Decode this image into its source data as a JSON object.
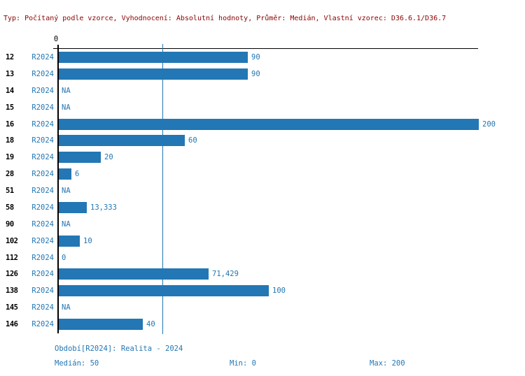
{
  "title": {
    "text": "Typ: Počítaný podle vzorce, Vyhodnocení: Absolutní hodnoty, Průměr: Medián, Vlastní vzorec: D36.6.1/D36.7"
  },
  "chart_data": {
    "type": "bar",
    "orientation": "horizontal",
    "axis_zero_label": "0",
    "xlim": [
      0,
      200
    ],
    "median_line_value": 50,
    "series_label": "R2024",
    "rows": [
      {
        "id": "12",
        "period": "R2024",
        "value": 90,
        "label": "90"
      },
      {
        "id": "13",
        "period": "R2024",
        "value": 90,
        "label": "90"
      },
      {
        "id": "14",
        "period": "R2024",
        "value": null,
        "label": "NA"
      },
      {
        "id": "15",
        "period": "R2024",
        "value": null,
        "label": "NA"
      },
      {
        "id": "16",
        "period": "R2024",
        "value": 200,
        "label": "200"
      },
      {
        "id": "18",
        "period": "R2024",
        "value": 60,
        "label": "60"
      },
      {
        "id": "19",
        "period": "R2024",
        "value": 20,
        "label": "20"
      },
      {
        "id": "28",
        "period": "R2024",
        "value": 6,
        "label": "6"
      },
      {
        "id": "51",
        "period": "R2024",
        "value": null,
        "label": "NA"
      },
      {
        "id": "58",
        "period": "R2024",
        "value": 13.333,
        "label": "13,333"
      },
      {
        "id": "90",
        "period": "R2024",
        "value": null,
        "label": "NA"
      },
      {
        "id": "102",
        "period": "R2024",
        "value": 10,
        "label": "10"
      },
      {
        "id": "112",
        "period": "R2024",
        "value": 0,
        "label": "0"
      },
      {
        "id": "126",
        "period": "R2024",
        "value": 71.429,
        "label": "71,429"
      },
      {
        "id": "138",
        "period": "R2024",
        "value": 100,
        "label": "100"
      },
      {
        "id": "145",
        "period": "R2024",
        "value": null,
        "label": "NA"
      },
      {
        "id": "146",
        "period": "R2024",
        "value": 40,
        "label": "40"
      }
    ]
  },
  "footer": {
    "period": "Období[R2024]: Realita - 2024",
    "median": "Medián: 50",
    "min": "Min: 0",
    "max": "Max: 200"
  },
  "colors": {
    "bar": "#2277b4",
    "blue_text": "#2277b4",
    "title_text": "#8b0000",
    "axis": "#000000"
  }
}
